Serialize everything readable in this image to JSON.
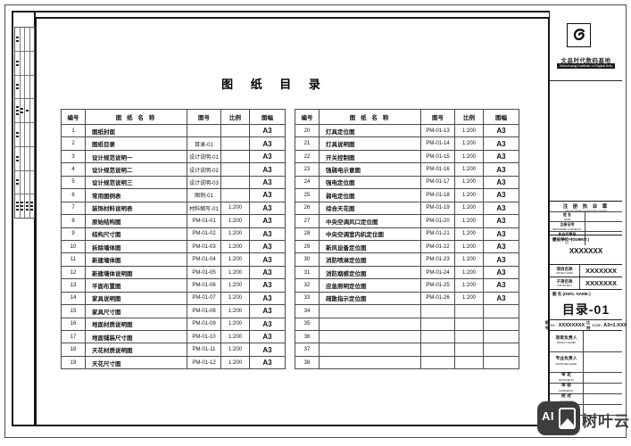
{
  "sheet_title": "图 纸 目 录",
  "catalog": {
    "columns": [
      "编号",
      "图 纸 名 称",
      "图号",
      "比例",
      "图幅"
    ],
    "left_rows": [
      [
        "1",
        "图纸封面",
        "",
        "",
        "A3"
      ],
      [
        "2",
        "图纸目录",
        "目录-01",
        "",
        "A3"
      ],
      [
        "3",
        "设计规范说明一",
        "设计说明-01",
        "",
        "A3"
      ],
      [
        "4",
        "设计规范说明二",
        "设计说明-02",
        "",
        "A3"
      ],
      [
        "5",
        "设计规范说明三",
        "设计说明-03",
        "",
        "A3"
      ],
      [
        "6",
        "常用图例表",
        "图例-01",
        "",
        "A3"
      ],
      [
        "7",
        "装饰材料说明表",
        "材料缩写-01",
        "1:200",
        "A3"
      ],
      [
        "8",
        "原始结构图",
        "PM-01-01",
        "1:200",
        "A3"
      ],
      [
        "9",
        "结构尺寸图",
        "PM-01-02",
        "1:200",
        "A3"
      ],
      [
        "10",
        "拆除墙体图",
        "PM-01-03",
        "1:200",
        "A3"
      ],
      [
        "11",
        "新建墙体图",
        "PM-01-04",
        "1:200",
        "A3"
      ],
      [
        "12",
        "新建墙体说明图",
        "PM-01-05",
        "1:200",
        "A3"
      ],
      [
        "13",
        "平面布置图",
        "PM-01-06",
        "1:200",
        "A3"
      ],
      [
        "14",
        "家具说明图",
        "PM-01-07",
        "1:200",
        "A3"
      ],
      [
        "15",
        "家具尺寸图",
        "PM-01-08",
        "1:200",
        "A3"
      ],
      [
        "16",
        "地面材质说明图",
        "PM-01-09",
        "1:200",
        "A3"
      ],
      [
        "17",
        "地面铺装尺寸图",
        "PM-01-10",
        "1:200",
        "A3"
      ],
      [
        "18",
        "天花材质说明图",
        "PM-01-11",
        "1:200",
        "A3"
      ],
      [
        "19",
        "天花尺寸图",
        "PM-01-12",
        "1:200",
        "A3"
      ]
    ],
    "right_rows": [
      [
        "20",
        "灯具定位图",
        "PM-01-13",
        "1:200",
        "A3"
      ],
      [
        "21",
        "灯具说明图",
        "PM-01-14",
        "1:200",
        "A3"
      ],
      [
        "22",
        "开关控制图",
        "PM-01-15",
        "1:200",
        "A3"
      ],
      [
        "23",
        "强弱电示意图",
        "PM-01-16",
        "1:200",
        "A3"
      ],
      [
        "24",
        "强电定位图",
        "PM-01-17",
        "1:200",
        "A3"
      ],
      [
        "25",
        "弱电定位图",
        "PM-01-18",
        "1:200",
        "A3"
      ],
      [
        "26",
        "综合天花图",
        "PM-01-19",
        "1:200",
        "A3"
      ],
      [
        "27",
        "中央空调风口定位图",
        "PM-01-20",
        "1:200",
        "A3"
      ],
      [
        "28",
        "中央空调室内机定位图",
        "PM-01-21",
        "1:200",
        "A3"
      ],
      [
        "29",
        "新风设备定位图",
        "PM-01-22",
        "1:200",
        "A3"
      ],
      [
        "30",
        "消防喷淋定位图",
        "PM-01-23",
        "1:200",
        "A3"
      ],
      [
        "31",
        "消防烟感定位图",
        "PM-01-24",
        "1:200",
        "A3"
      ],
      [
        "32",
        "应急照明定位图",
        "PM-01-25",
        "1:200",
        "A3"
      ],
      [
        "33",
        "疏散指示定位图",
        "PM-01-26",
        "1:200",
        "A3"
      ],
      [
        "34",
        "",
        "",
        "",
        ""
      ],
      [
        "35",
        "",
        "",
        "",
        ""
      ],
      [
        "36",
        "",
        "",
        "",
        ""
      ],
      [
        "37",
        "",
        "",
        "",
        ""
      ],
      [
        "38",
        "",
        "",
        "",
        ""
      ]
    ]
  },
  "title_block": {
    "company_cn": "文昌时代数码基地",
    "company_en": "Wenchang Institute of Digital Arts",
    "stamp_header_cn": "注 册 执 业 章",
    "stamp_header_en": "REGISTERED MASTER STAMP",
    "stamp_rows": [
      {
        "cn": "姓 名",
        "en": "NAME"
      },
      {
        "cn": "注册证号",
        "en": "REGISTERED LICENSE NO."
      },
      {
        "cn": "执业印章号",
        "en": "REGISTERED CERTIFICATE NO."
      }
    ],
    "client_label": "建设单位: (CLIENT:)",
    "client_value": "XXXXXXX",
    "project_label_cn": "项目名称",
    "project_label_en": "PROJECT NAME",
    "project_value": "XXXXXXX",
    "subproject_label_cn": "子项名称",
    "subproject_label_en": "SUB PROJECT",
    "subproject_value": "XXXXXXX",
    "dwg_label": "图 名 (DWG. NAME:)",
    "dwg_name": "目录-01",
    "no_label_cn": "图 号",
    "no_label_en": "no.:",
    "no_value": "XXXXXXXX",
    "scale_label_cn": "比 例",
    "scale_label_en": "scale:",
    "scale_value": "A3=1:XXX",
    "sign_rows": [
      {
        "cn": "项目负责人",
        "en": "PROJECT LEADER"
      },
      {
        "cn": "专业负责人",
        "en": "DISCIPLINE LEADER"
      },
      {
        "cn": "审 定",
        "en": "APPROVED BY"
      },
      {
        "cn": "审 核",
        "en": "EXAMINED BY"
      },
      {
        "cn": "校 对",
        "en": "CHECKED BY"
      },
      {
        "cn": "设 计",
        "en": "DESIGNED BY"
      },
      {
        "cn": "制 图",
        "en": "DRAWN BY"
      }
    ]
  },
  "side_strip": {
    "rows": [
      [
        2,
        0,
        0,
        0
      ],
      [
        2,
        0,
        0,
        0
      ],
      [
        2,
        0,
        0,
        0
      ],
      [
        3,
        2,
        1,
        0
      ],
      [
        2,
        0,
        0,
        0
      ],
      [
        2,
        0,
        0,
        0
      ],
      [
        2,
        0,
        0,
        0
      ],
      [
        3,
        3,
        3,
        3
      ]
    ]
  },
  "watermark": {
    "icon_label": "AI",
    "text": "树叶云"
  },
  "colors": {
    "line": "#161616",
    "watermark_gray": "#3d3d3d"
  }
}
